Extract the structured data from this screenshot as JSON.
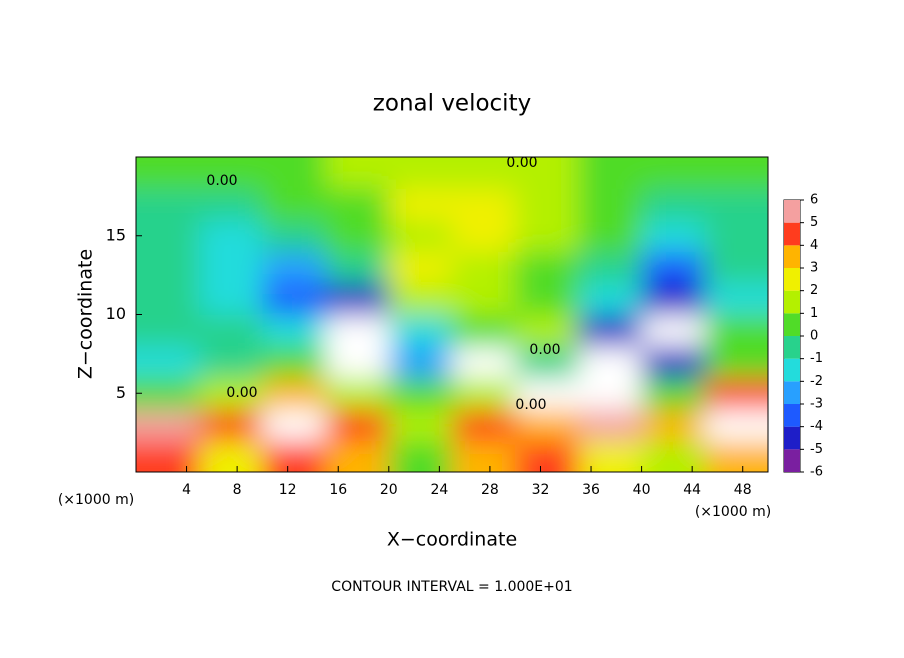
{
  "chart_data": {
    "type": "heatmap",
    "title": "zonal velocity",
    "x_label": "X−coordinate",
    "y_label": "Z−coordinate",
    "x_unit_label": "(×1000 m)",
    "footer": "CONTOUR INTERVAL = 1.000E+01",
    "contour_labels": [
      "0.00",
      "0.00",
      "0.00",
      "0.00",
      "0.00"
    ],
    "xlim": [
      0,
      50
    ],
    "ylim": [
      0,
      20
    ],
    "xticks": [
      4,
      8,
      12,
      16,
      20,
      24,
      28,
      32,
      36,
      40,
      44,
      48
    ],
    "yticks": [
      5,
      10,
      15
    ],
    "x": [
      2.5,
      7.5,
      12.5,
      17.5,
      22.5,
      27.5,
      32.5,
      37.5,
      42.5,
      47.5
    ],
    "z": [
      1,
      3,
      5,
      7,
      9,
      11,
      13,
      15,
      17,
      19
    ],
    "values": [
      [
        4,
        2,
        4,
        3,
        0,
        3,
        4,
        2,
        1,
        3
      ],
      [
        5,
        4,
        7,
        4,
        1,
        4,
        3,
        5,
        3,
        7
      ],
      [
        0,
        1,
        3,
        1,
        0.5,
        1,
        -7,
        -7,
        0,
        4
      ],
      [
        -2,
        -1,
        0,
        -7,
        -3,
        -7,
        -1,
        -7,
        -5,
        0
      ],
      [
        -1,
        -1,
        -2,
        -7,
        -2,
        0.5,
        1,
        -5,
        -7,
        0
      ],
      [
        -1,
        -2,
        -4,
        -5,
        1,
        1,
        0,
        -2,
        -5,
        -2
      ],
      [
        -1,
        -2,
        -3,
        -1,
        2.5,
        1.5,
        0.5,
        -1,
        -4,
        -1
      ],
      [
        -1,
        -2,
        -1,
        0,
        1.5,
        2,
        1,
        0,
        -2,
        -1
      ],
      [
        -1,
        -1,
        0,
        0.5,
        2,
        2.5,
        1,
        0,
        -1,
        -1
      ],
      [
        0,
        0,
        0,
        1,
        1.5,
        1.5,
        1,
        0.5,
        0,
        0
      ]
    ],
    "colorbar": {
      "ticks": [
        -6,
        -5,
        -4,
        -3,
        -2,
        -1,
        0,
        1,
        2,
        3,
        4,
        5,
        6
      ],
      "colors": [
        "#7a1fa0",
        "#1e1ec8",
        "#1e5aff",
        "#28a0ff",
        "#23dcdc",
        "#28d28c",
        "#50dc28",
        "#b4f000",
        "#f0f000",
        "#ffb400",
        "#ff3c1e",
        "#f4a0a0"
      ]
    }
  }
}
